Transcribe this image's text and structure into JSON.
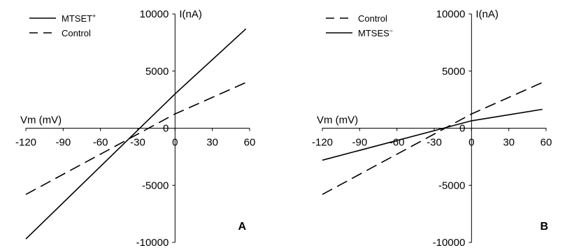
{
  "chart_data": [
    {
      "panel": "A",
      "type": "line",
      "xlabel": "Vm (mV)",
      "ylabel": "I(nA)",
      "xlim": [
        -120,
        60
      ],
      "ylim": [
        -10000,
        10000
      ],
      "x_ticks": [
        -120,
        -90,
        -60,
        -30,
        0,
        30,
        60
      ],
      "y_ticks": [
        -10000,
        -5000,
        0,
        5000,
        10000
      ],
      "legend": "top-left",
      "grid": false,
      "series": [
        {
          "name": "MTSET",
          "name_sup": "+",
          "style": "solid",
          "x": [
            -120,
            0,
            57
          ],
          "y": [
            -9700,
            3000,
            8700
          ]
        },
        {
          "name": "Control",
          "name_sup": "",
          "style": "dashed",
          "x": [
            -120,
            0,
            57
          ],
          "y": [
            -5800,
            1250,
            4000
          ]
        }
      ]
    },
    {
      "panel": "B",
      "type": "line",
      "xlabel": "Vm (mV)",
      "ylabel": "I(nA)",
      "xlim": [
        -120,
        60
      ],
      "ylim": [
        -10000,
        10000
      ],
      "x_ticks": [
        -120,
        -90,
        -60,
        -30,
        0,
        30,
        60
      ],
      "y_ticks": [
        -10000,
        -5000,
        0,
        5000,
        10000
      ],
      "legend": "top-left",
      "grid": false,
      "series": [
        {
          "name": "Control",
          "name_sup": "",
          "style": "dashed",
          "x": [
            -120,
            0,
            57
          ],
          "y": [
            -5800,
            1250,
            4000
          ]
        },
        {
          "name": "MTSES",
          "name_sup": "−",
          "style": "solid",
          "x": [
            -120,
            0,
            57
          ],
          "y": [
            -2800,
            650,
            1650
          ]
        }
      ]
    }
  ]
}
